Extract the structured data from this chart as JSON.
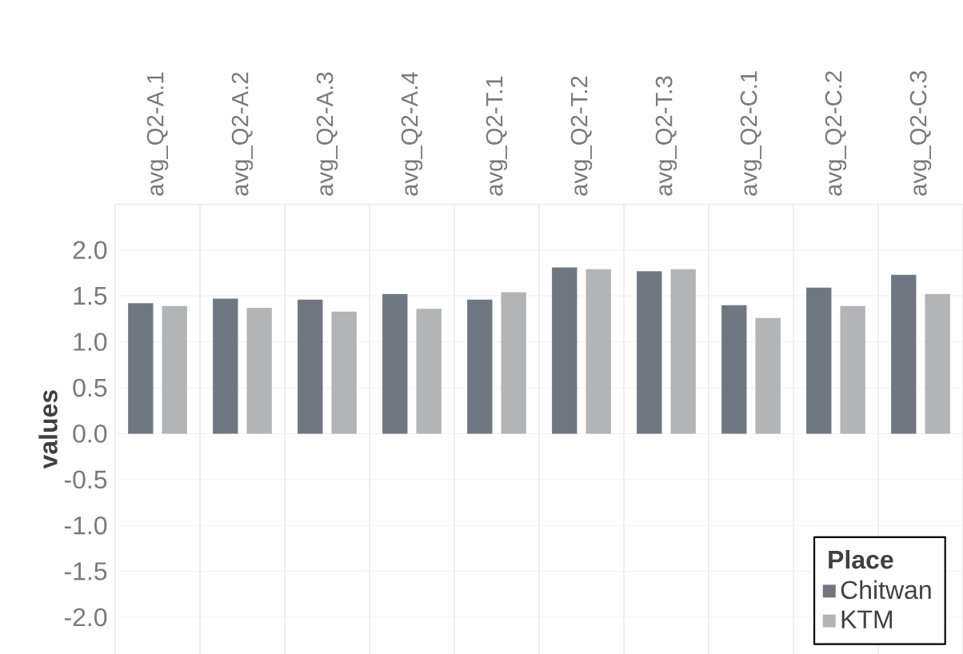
{
  "chart_data": {
    "type": "bar",
    "ylabel": "values",
    "legend_title": "Place",
    "legend": "bottom right",
    "grid": true,
    "categories": [
      "avg_Q2-A.1",
      "avg_Q2-A.2",
      "avg_Q2-A.3",
      "avg_Q2-A.4",
      "avg_Q2-T.1",
      "avg_Q2-T.2",
      "avg_Q2-T.3",
      "avg_Q2-C.1",
      "avg_Q2-C.2",
      "avg_Q2-C.3"
    ],
    "series": [
      {
        "name": "Chitwan",
        "color": "#6f7782",
        "values": [
          1.42,
          1.47,
          1.46,
          1.52,
          1.46,
          1.81,
          1.77,
          1.4,
          1.59,
          1.73
        ]
      },
      {
        "name": "KTM",
        "color": "#b2b4b6",
        "values": [
          1.39,
          1.37,
          1.33,
          1.36,
          1.54,
          1.79,
          1.79,
          1.26,
          1.39,
          1.52
        ]
      }
    ],
    "ylim": [
      -2.4,
      2.5
    ],
    "yticks": [
      {
        "value": 2,
        "label": "2.0"
      },
      1.5,
      {
        "value": 1,
        "label": "1.0"
      },
      0.5,
      {
        "value": 0,
        "label": "0.0"
      },
      -0.5,
      {
        "value": -1,
        "label": "-1.0"
      },
      -1.5,
      {
        "value": -2,
        "label": "-2.0"
      }
    ]
  }
}
